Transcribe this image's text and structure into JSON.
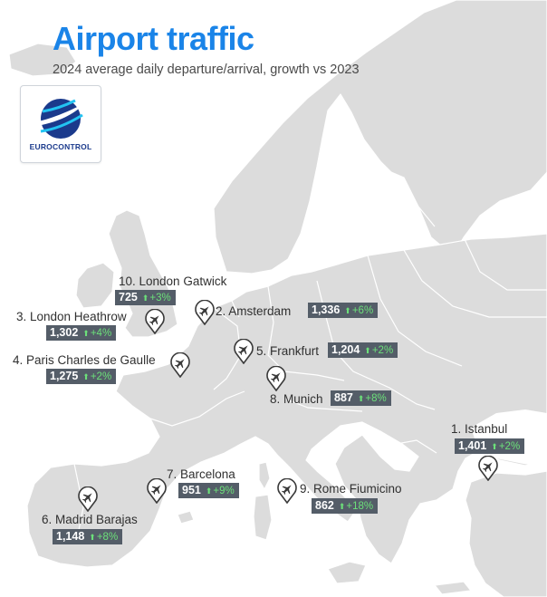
{
  "title": "Airport traffic",
  "subtitle": "2024 average daily departure/arrival, growth vs 2023",
  "logo": {
    "name": "EUROCONTROL"
  },
  "colors": {
    "title": "#1a84e8",
    "land": "#dcdcdc",
    "border": "#ffffff",
    "badge": "#545d68",
    "growth": "#6ce07a"
  },
  "airports": [
    {
      "rank": "1.",
      "name": "Istanbul",
      "label": "1. Istanbul",
      "value": "1,401",
      "growth": "+2%",
      "arrow": "⬆"
    },
    {
      "rank": "2.",
      "name": "Amsterdam",
      "label": "2. Amsterdam",
      "value": "1,336",
      "growth": "+6%",
      "arrow": "⬆"
    },
    {
      "rank": "3.",
      "name": "London Heathrow",
      "label": "3. London Heathrow",
      "value": "1,302",
      "growth": "+4%",
      "arrow": "⬆"
    },
    {
      "rank": "4.",
      "name": "Paris Charles de Gaulle",
      "label": "4. Paris Charles de Gaulle",
      "value": "1,275",
      "growth": "+2%",
      "arrow": "⬆"
    },
    {
      "rank": "5.",
      "name": "Frankfurt",
      "label": "5. Frankfurt",
      "value": "1,204",
      "growth": "+2%",
      "arrow": "⬆"
    },
    {
      "rank": "6.",
      "name": "Madrid Barajas",
      "label": "6. Madrid Barajas",
      "value": "1,148",
      "growth": "+8%",
      "arrow": "⬆"
    },
    {
      "rank": "7.",
      "name": "Barcelona",
      "label": "7. Barcelona",
      "value": "951",
      "growth": "+9%",
      "arrow": "⬆"
    },
    {
      "rank": "8.",
      "name": "Munich",
      "label": "8. Munich",
      "value": "887",
      "growth": "+8%",
      "arrow": "⬆"
    },
    {
      "rank": "9.",
      "name": "Rome Fiumicino",
      "label": "9. Rome Fiumicino",
      "value": "862",
      "growth": "+18%",
      "arrow": "⬆"
    },
    {
      "rank": "10.",
      "name": "London Gatwick",
      "label": "10. London Gatwick",
      "value": "725",
      "growth": "+3%",
      "arrow": "⬆"
    }
  ]
}
